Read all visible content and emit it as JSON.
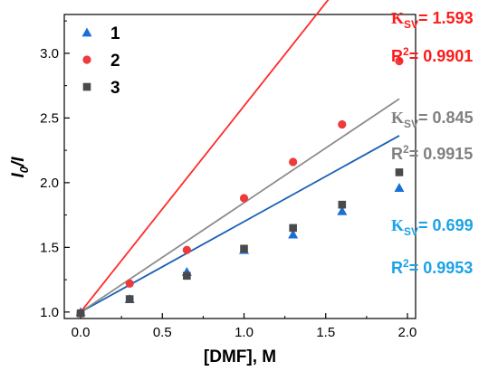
{
  "chart_data": {
    "type": "scatter",
    "xlabel": "[DMF], M",
    "ylabel_main": "I",
    "ylabel_sub": "0",
    "ylabel_tail": "/I",
    "xlim": [
      -0.1,
      2.05
    ],
    "ylim": [
      0.95,
      3.3
    ],
    "xticks": [
      0.0,
      0.5,
      1.0,
      1.5,
      2.0
    ],
    "xtick_labels": [
      "0.0",
      "0.5",
      "1.0",
      "1.5",
      "2.0"
    ],
    "yticks": [
      1.0,
      1.5,
      2.0,
      2.5,
      3.0
    ],
    "ytick_labels": [
      "1.0",
      "1.5",
      "2.0",
      "2.5",
      "3.0"
    ],
    "legend_position": "top-left",
    "series": [
      {
        "name": "1",
        "marker": "triangle",
        "color": "#1a6fd6",
        "x": [
          0.0,
          0.3,
          0.65,
          1.0,
          1.3,
          1.6,
          1.95
        ],
        "y": [
          1.0,
          1.1,
          1.31,
          1.48,
          1.6,
          1.78,
          1.96
        ],
        "fit": {
          "slope": 0.699,
          "x0": 0.0,
          "x1": 1.95
        },
        "annotation": {
          "k_label": "K",
          "k_sub": "SV",
          "k_value": "= 0.699",
          "r_label": "R",
          "r_sup": "2",
          "r_value": "= 0.9953",
          "color": "#1aa3e8"
        }
      },
      {
        "name": "2",
        "marker": "circle",
        "color": "#ee3a3a",
        "x": [
          0.0,
          0.3,
          0.65,
          1.0,
          1.3,
          1.6,
          1.95
        ],
        "y": [
          0.99,
          1.22,
          1.48,
          1.88,
          2.16,
          2.45,
          2.94
        ],
        "fit": {
          "slope": 1.593,
          "x0": 0.0,
          "x1": 1.95
        },
        "annotation": {
          "k_label": "K",
          "k_sub": "SV",
          "k_value": "= 1.593",
          "r_label": "R",
          "r_sup": "2",
          "r_value": "= 0.9901",
          "color": "#ff1a1a"
        }
      },
      {
        "name": "3",
        "marker": "square",
        "color": "#4a4a4a",
        "x": [
          0.0,
          0.3,
          0.65,
          1.0,
          1.3,
          1.6,
          1.95
        ],
        "y": [
          0.99,
          1.1,
          1.28,
          1.49,
          1.65,
          1.83,
          2.08
        ],
        "fit": {
          "slope": 0.845,
          "x0": 0.0,
          "x1": 1.95
        },
        "annotation": {
          "k_label": "K",
          "k_sub": "SV",
          "k_value": "= 0.845",
          "r_label": "R",
          "r_sup": "2",
          "r_value": "= 0.9915",
          "color": "#808080"
        }
      }
    ],
    "fit_colors": [
      "#1a5fb4",
      "#ff2a2a",
      "#8c8c8c"
    ]
  }
}
